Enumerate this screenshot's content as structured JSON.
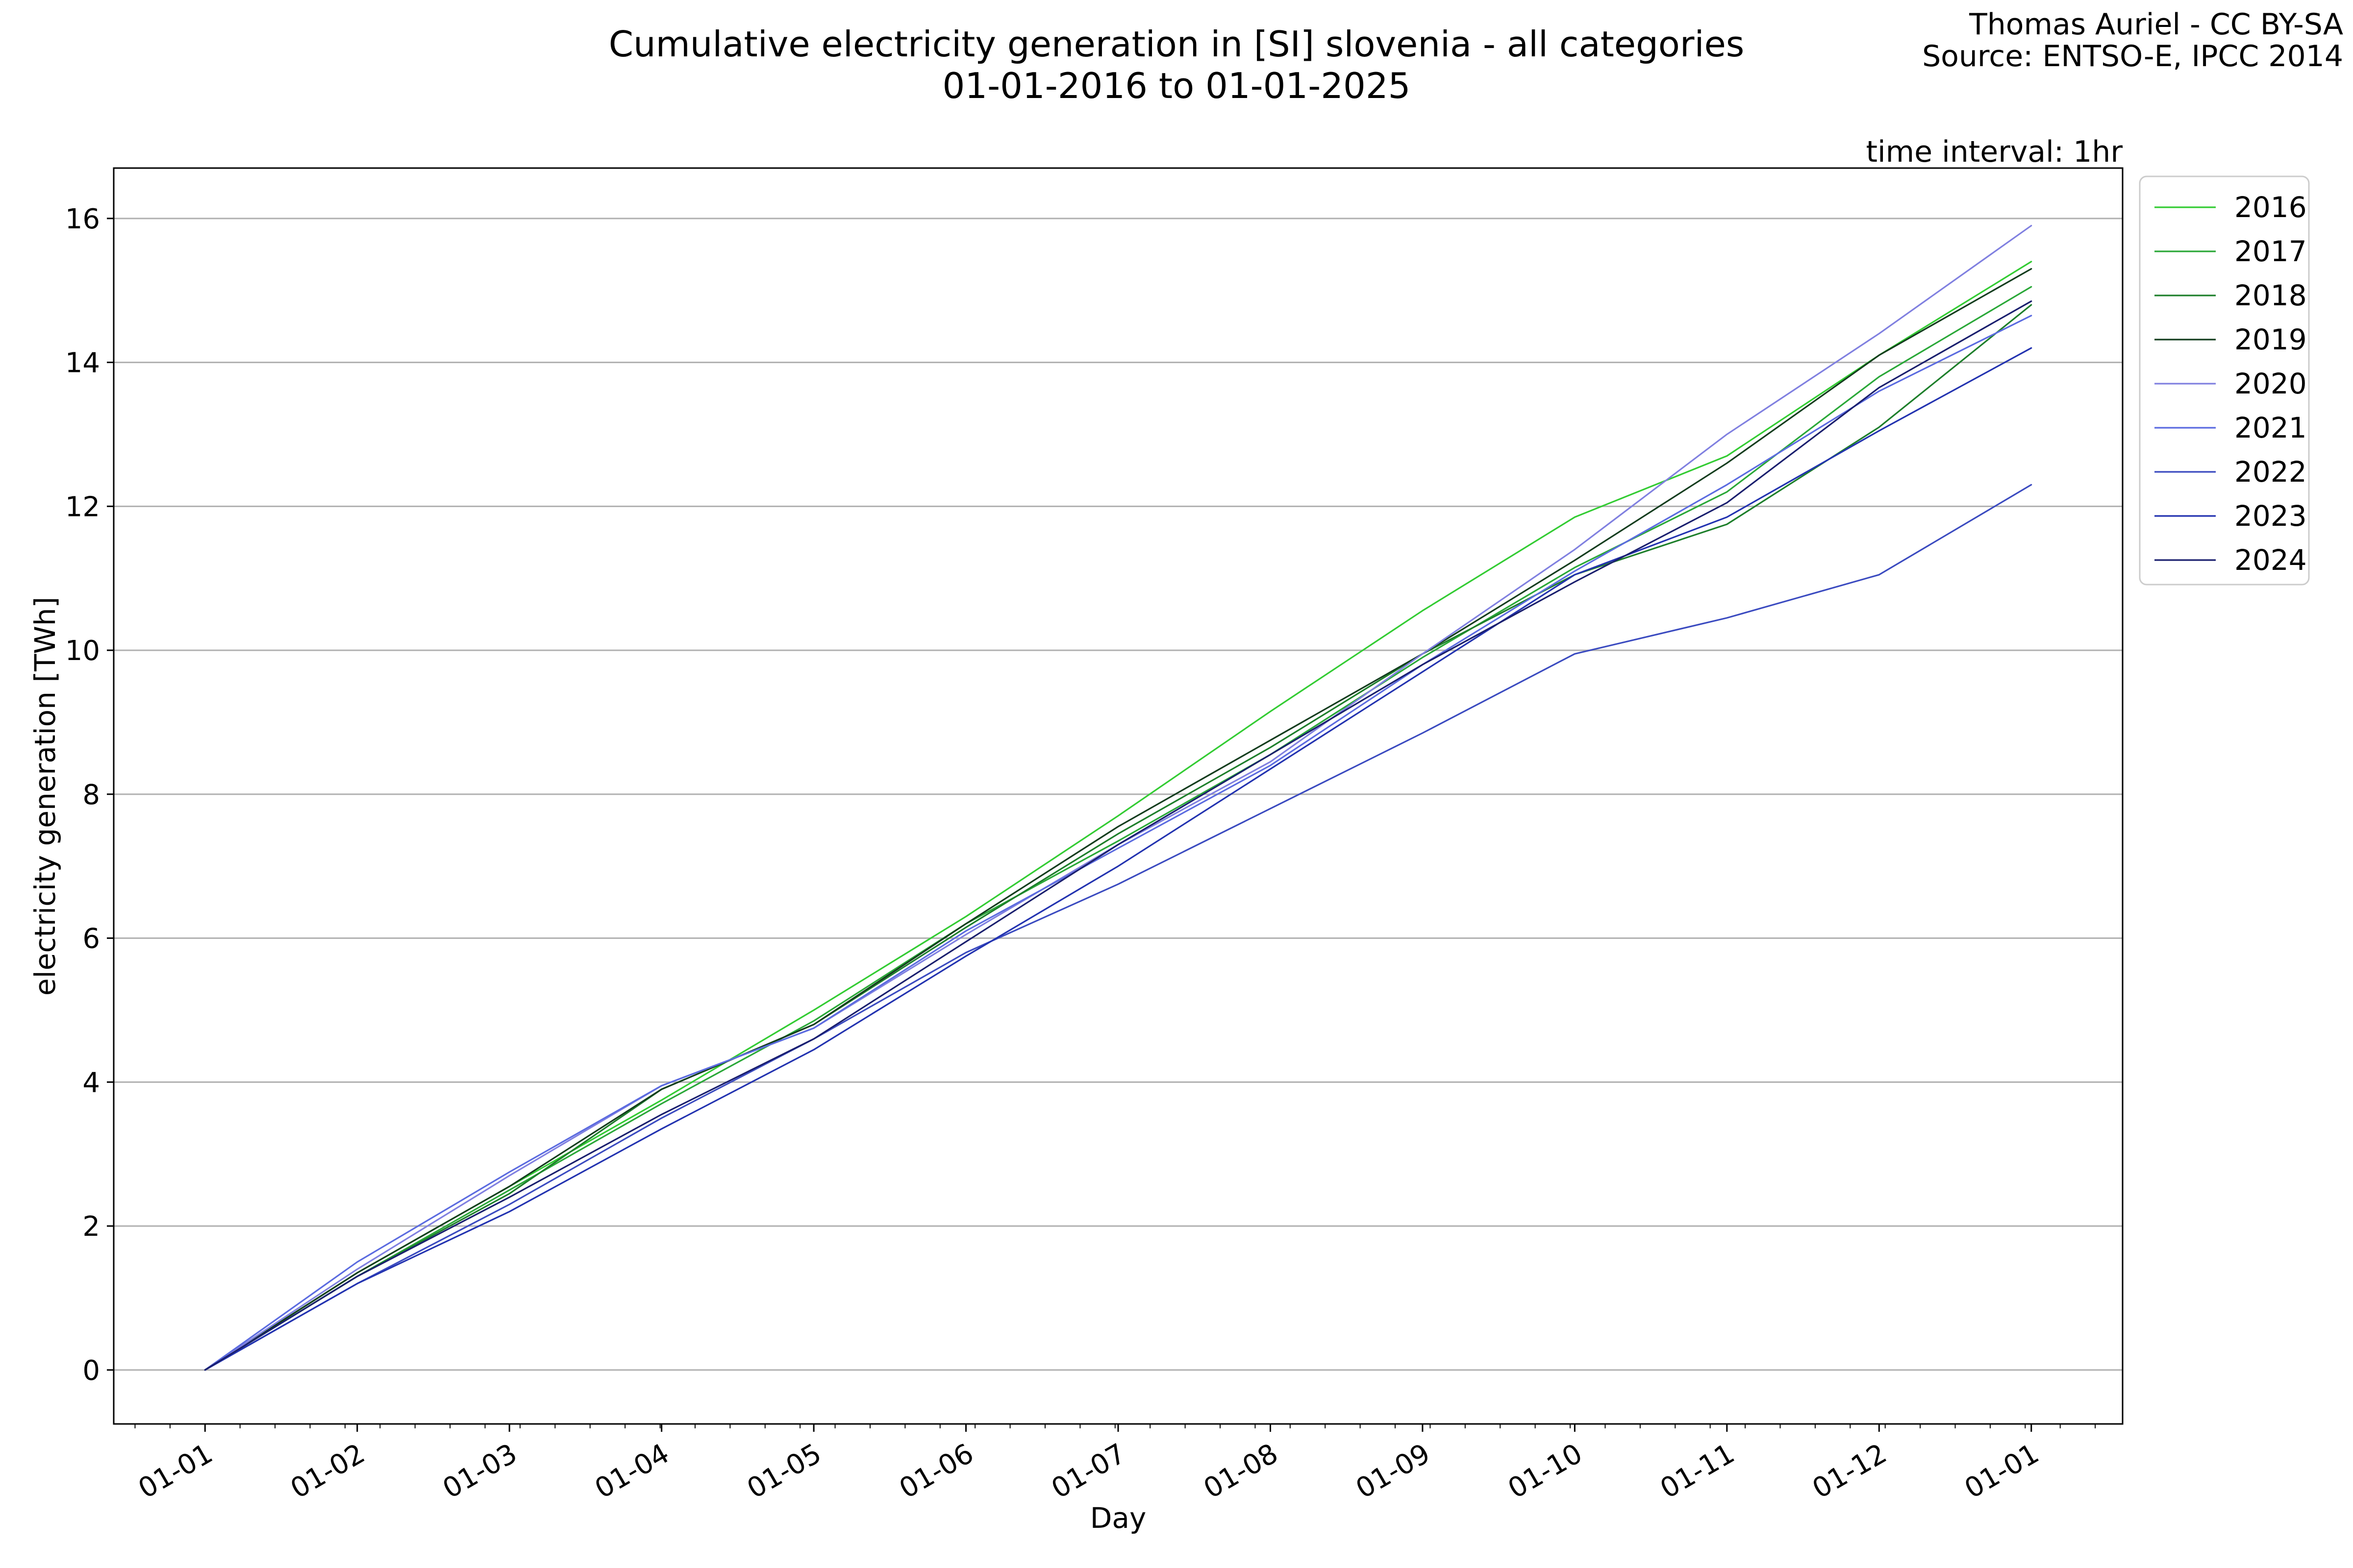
{
  "chart_data": {
    "type": "line",
    "title": "Cumulative electricity generation in [SI] slovenia - all categories",
    "subtitle": "01-01-2016 to 01-01-2025",
    "credit_line1": "Thomas Auriel - CC BY-SA",
    "credit_line2": "Source: ENTSO-E, IPCC 2014",
    "annotation": "time interval: 1hr",
    "xlabel": "Day",
    "ylabel": "electricity generation [TWh]",
    "xlim": [
      -0.6,
      12.6
    ],
    "ylim": [
      -0.75,
      16.7
    ],
    "x_ticks": [
      0,
      1,
      2,
      3,
      4,
      5,
      6,
      7,
      8,
      9,
      10,
      11,
      12
    ],
    "x_tick_labels": [
      "01-01",
      "01-02",
      "01-03",
      "01-04",
      "01-05",
      "01-06",
      "01-07",
      "01-08",
      "01-09",
      "01-10",
      "01-11",
      "01-12",
      "01-01"
    ],
    "y_ticks": [
      0,
      2,
      4,
      6,
      8,
      10,
      12,
      14,
      16
    ],
    "y_tick_labels": [
      "0",
      "2",
      "4",
      "6",
      "8",
      "10",
      "12",
      "14",
      "16"
    ],
    "grid": "y",
    "legend_position": "outside-top-right",
    "x": [
      0,
      1,
      2,
      3,
      4,
      5,
      6,
      7,
      8,
      9,
      10,
      11,
      12
    ],
    "series": [
      {
        "name": "2016",
        "color": "#33cc33",
        "values": [
          0,
          1.35,
          2.55,
          3.75,
          5.0,
          6.3,
          7.7,
          9.15,
          10.55,
          11.85,
          12.7,
          14.1,
          15.4
        ]
      },
      {
        "name": "2017",
        "color": "#2aa838",
        "values": [
          0,
          1.3,
          2.5,
          3.7,
          4.85,
          6.2,
          7.35,
          8.55,
          9.9,
          11.15,
          12.2,
          13.8,
          15.05
        ]
      },
      {
        "name": "2018",
        "color": "#1e7f2b",
        "values": [
          0,
          1.3,
          2.45,
          3.9,
          4.8,
          6.15,
          7.45,
          8.65,
          9.95,
          11.05,
          11.75,
          13.1,
          14.8
        ]
      },
      {
        "name": "2019",
        "color": "#133d1e",
        "values": [
          0,
          1.35,
          2.55,
          3.9,
          4.8,
          6.2,
          7.55,
          8.75,
          9.95,
          11.25,
          12.6,
          14.1,
          15.3
        ]
      },
      {
        "name": "2020",
        "color": "#8080e0",
        "values": [
          0,
          1.4,
          2.7,
          3.95,
          4.75,
          6.05,
          7.3,
          8.45,
          9.95,
          11.4,
          13.0,
          14.4,
          15.9
        ]
      },
      {
        "name": "2021",
        "color": "#5b6be0",
        "values": [
          0,
          1.5,
          2.75,
          3.95,
          4.75,
          6.1,
          7.25,
          8.4,
          9.8,
          11.1,
          12.3,
          13.6,
          14.65
        ]
      },
      {
        "name": "2022",
        "color": "#3b4bc0",
        "values": [
          0,
          1.2,
          2.3,
          3.5,
          4.6,
          5.8,
          6.75,
          7.8,
          8.85,
          9.95,
          10.45,
          11.05,
          12.3
        ]
      },
      {
        "name": "2023",
        "color": "#2333b0",
        "values": [
          0,
          1.2,
          2.2,
          3.35,
          4.45,
          5.75,
          7.0,
          8.35,
          9.7,
          11.05,
          11.85,
          13.05,
          14.2
        ]
      },
      {
        "name": "2024",
        "color": "#1a1f6e",
        "values": [
          0,
          1.3,
          2.4,
          3.55,
          4.6,
          5.95,
          7.3,
          8.55,
          9.8,
          10.95,
          12.05,
          13.65,
          14.85
        ]
      }
    ]
  }
}
